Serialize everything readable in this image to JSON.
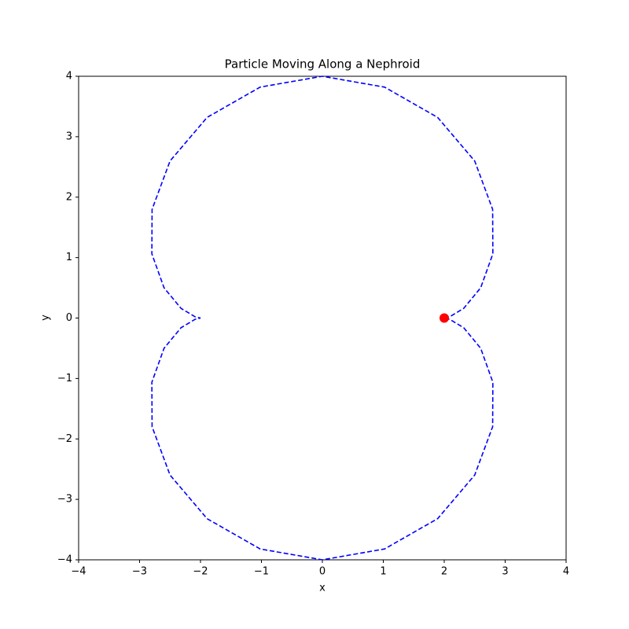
{
  "chart_data": {
    "type": "line",
    "title": "Particle Moving Along a Nephroid",
    "xlabel": "x",
    "ylabel": "y",
    "x": [
      2,
      2.0884,
      2.3191,
      2.5981,
      2.7981,
      2.7944,
      2.5,
      1.8921,
      1.0209,
      0,
      -1.0209,
      -1.8921,
      -2.5,
      -2.7944,
      -2.7981,
      -2.5981,
      -2.3191,
      -2.0884,
      -2,
      -2.0884,
      -2.3191,
      -2.5981,
      -2.7981,
      -2.7944,
      -2.5,
      -1.8921,
      -1.0209,
      0,
      1.0209,
      1.8921,
      2.5,
      2.7944,
      2.7981,
      2.5981,
      2.3191,
      2.0884,
      2
    ],
    "y": [
      0,
      0.0209,
      0.16,
      0.5,
      1.0623,
      1.7981,
      2.5981,
      3.3191,
      3.8205,
      4,
      3.8205,
      3.3191,
      2.5981,
      1.7981,
      1.0623,
      0.5,
      0.16,
      0.0209,
      0,
      -0.0209,
      -0.16,
      -0.5,
      -1.0623,
      -1.7981,
      -2.5981,
      -3.3191,
      -3.8205,
      -4,
      -3.8205,
      -3.3191,
      -2.5981,
      -1.7981,
      -1.0623,
      -0.5,
      -0.16,
      -0.0209,
      0
    ],
    "color": "#0000ff",
    "linestyle": "dashed",
    "particle": {
      "x": 2,
      "y": 0,
      "color": "#ff0000"
    },
    "xlim": [
      -4,
      4
    ],
    "ylim": [
      -4,
      4
    ],
    "xticks": [
      {
        "value": -4,
        "label": "−4"
      },
      {
        "value": -3,
        "label": "−3"
      },
      {
        "value": -2,
        "label": "−2"
      },
      {
        "value": -1,
        "label": "−1"
      },
      0,
      1,
      2,
      3,
      4
    ],
    "yticks": [
      {
        "value": -4,
        "label": "−4"
      },
      {
        "value": -3,
        "label": "−3"
      },
      {
        "value": -2,
        "label": "−2"
      },
      {
        "value": -1,
        "label": "−1"
      },
      0,
      1,
      2,
      3,
      4
    ]
  }
}
